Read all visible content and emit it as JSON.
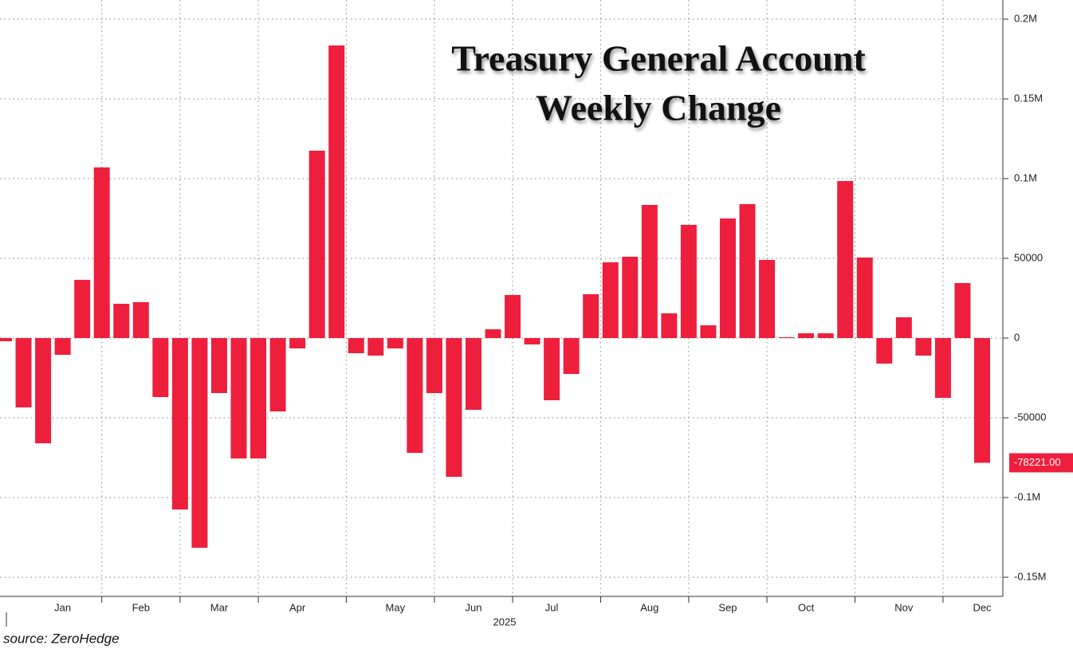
{
  "chart_data": {
    "type": "bar",
    "title": [
      "Treasury General Account",
      "Weekly Change"
    ],
    "xlabel": "2025",
    "source": "source: ZeroHedge",
    "color": "#ee1f3d",
    "categories": [
      null,
      null,
      null,
      "Jan",
      null,
      null,
      null,
      "Feb",
      null,
      null,
      null,
      "Mar",
      null,
      null,
      null,
      "Apr",
      null,
      null,
      null,
      null,
      "May",
      null,
      null,
      null,
      "Jun",
      null,
      null,
      null,
      "Jul",
      null,
      null,
      null,
      null,
      "Aug",
      null,
      null,
      null,
      "Sep",
      null,
      null,
      null,
      "Oct",
      null,
      null,
      null,
      null,
      "Nov",
      null,
      null,
      null,
      "Dec"
    ],
    "values": [
      -2000,
      -43500,
      -66000,
      -10500,
      36500,
      107000,
      21500,
      22500,
      -37000,
      -107500,
      -131500,
      -34500,
      -75500,
      -75500,
      -46000,
      -6500,
      117500,
      183500,
      -9500,
      -11000,
      -6500,
      -72000,
      -34500,
      -87000,
      -45000,
      5500,
      27000,
      -4000,
      -39000,
      -22500,
      27500,
      47500,
      51000,
      83500,
      15500,
      71000,
      8000,
      75000,
      84000,
      49000,
      500,
      3000,
      3000,
      98500,
      50500,
      -16000,
      13000,
      -11000,
      -37500,
      34500,
      -78221
    ],
    "value_labels": [
      null,
      null,
      null,
      null,
      null,
      null,
      null,
      null,
      null,
      null,
      null,
      null,
      null,
      null,
      null,
      null,
      null,
      null,
      null,
      null,
      null,
      null,
      null,
      null,
      null,
      null,
      null,
      null,
      null,
      null,
      null,
      null,
      null,
      null,
      null,
      null,
      null,
      null,
      null,
      null,
      null,
      null,
      null,
      null,
      null,
      null,
      null,
      null,
      null,
      null,
      "-78221.00"
    ],
    "ylim": [
      -162000,
      212000
    ],
    "yticks": [
      {
        "value": 200000,
        "label": "0.2M"
      },
      {
        "value": 150000,
        "label": "0.15M"
      },
      {
        "value": 100000,
        "label": "0.1M"
      },
      50000,
      0,
      -50000,
      {
        "value": -100000,
        "label": "-0.1M"
      },
      {
        "value": -150000,
        "label": "-0.15M"
      }
    ],
    "grid": true
  }
}
